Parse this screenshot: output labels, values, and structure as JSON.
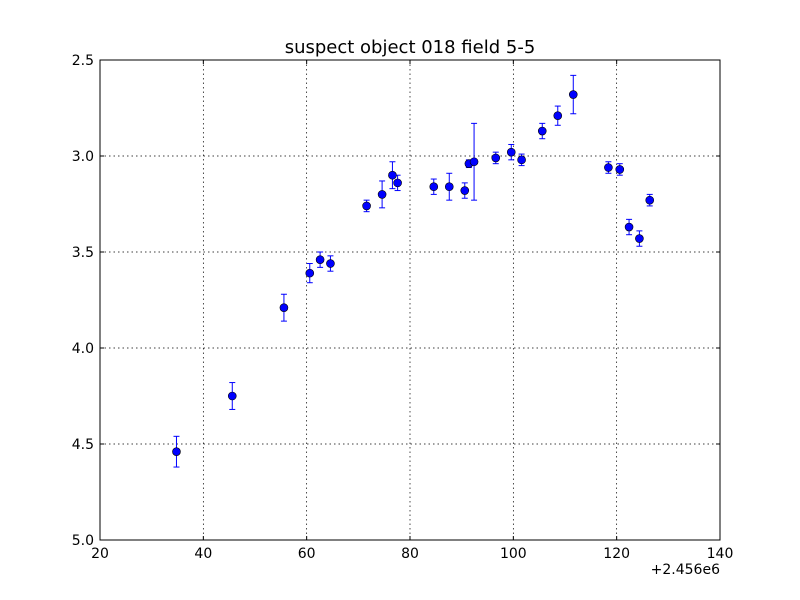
{
  "chart_data": {
    "type": "scatter",
    "title": "suspect object 018 field 5-5",
    "xlabel": "",
    "ylabel": "",
    "x_offset_label": "+2.456e6",
    "xlim": [
      20,
      140
    ],
    "ylim": [
      5.0,
      2.5
    ],
    "y_inverted": true,
    "grid": true,
    "x_ticks": [
      20,
      40,
      60,
      80,
      100,
      120,
      140
    ],
    "x_tick_labels": [
      "20",
      "40",
      "60",
      "80",
      "100",
      "120",
      "140"
    ],
    "y_ticks": [
      2.5,
      3.0,
      3.5,
      4.0,
      4.5,
      5.0
    ],
    "y_tick_labels": [
      "2.5",
      "3.0",
      "3.5",
      "4.0",
      "4.5",
      "5.0"
    ],
    "colors": {
      "marker": "#0000ff",
      "error_bar": "#0000ff"
    },
    "series": [
      {
        "marker": "circle",
        "points": [
          {
            "x": 34.8,
            "y": 4.54,
            "err": 0.08
          },
          {
            "x": 45.6,
            "y": 4.25,
            "err": 0.07
          },
          {
            "x": 55.6,
            "y": 3.79,
            "err": 0.07
          },
          {
            "x": 60.6,
            "y": 3.61,
            "err": 0.05
          },
          {
            "x": 62.6,
            "y": 3.54,
            "err": 0.04
          },
          {
            "x": 64.6,
            "y": 3.56,
            "err": 0.04
          },
          {
            "x": 71.6,
            "y": 3.26,
            "err": 0.03
          },
          {
            "x": 74.6,
            "y": 3.2,
            "err": 0.07
          },
          {
            "x": 76.6,
            "y": 3.1,
            "err": 0.07
          },
          {
            "x": 77.6,
            "y": 3.14,
            "err": 0.04
          },
          {
            "x": 84.6,
            "y": 3.16,
            "err": 0.04
          },
          {
            "x": 87.6,
            "y": 3.16,
            "err": 0.07
          },
          {
            "x": 90.6,
            "y": 3.18,
            "err": 0.04
          },
          {
            "x": 91.4,
            "y": 3.04,
            "err": 0.02
          },
          {
            "x": 92.4,
            "y": 3.03,
            "err": 0.2
          },
          {
            "x": 96.6,
            "y": 3.01,
            "err": 0.03
          },
          {
            "x": 99.6,
            "y": 2.98,
            "err": 0.04
          },
          {
            "x": 101.6,
            "y": 3.02,
            "err": 0.03
          },
          {
            "x": 105.6,
            "y": 2.87,
            "err": 0.04
          },
          {
            "x": 108.6,
            "y": 2.79,
            "err": 0.05
          },
          {
            "x": 111.6,
            "y": 2.68,
            "err": 0.1
          },
          {
            "x": 118.4,
            "y": 3.06,
            "err": 0.03
          },
          {
            "x": 120.6,
            "y": 3.07,
            "err": 0.03
          },
          {
            "x": 122.4,
            "y": 3.37,
            "err": 0.04
          },
          {
            "x": 124.4,
            "y": 3.43,
            "err": 0.04
          },
          {
            "x": 126.4,
            "y": 3.23,
            "err": 0.03
          }
        ]
      }
    ]
  }
}
